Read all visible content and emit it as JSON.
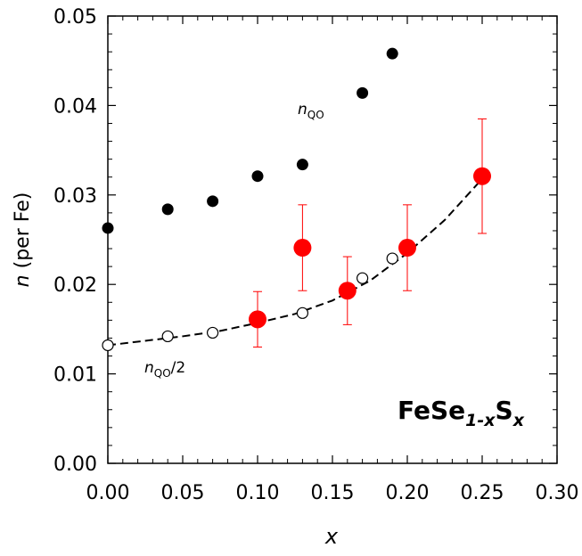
{
  "chart_data": {
    "type": "scatter",
    "x_label": "x",
    "y_label": [
      "n",
      "(per Fe)"
    ],
    "xlim": [
      0,
      0.3
    ],
    "ylim": [
      0,
      0.05
    ],
    "xticks": [
      {
        "value": 0,
        "label": "0.00"
      },
      0.05,
      {
        "value": 0.1,
        "label": "0.10"
      },
      0.15,
      {
        "value": 0.2,
        "label": "0.20"
      },
      0.25,
      {
        "value": 0.3,
        "label": "0.30"
      }
    ],
    "yticks": [
      {
        "value": 0,
        "label": "0.00"
      },
      0.01,
      0.02,
      0.03,
      0.04,
      0.05
    ],
    "series": [
      {
        "color": "#000000",
        "marker": "filled",
        "x": [
          0,
          0.04,
          0.07,
          0.1,
          0.13,
          0.17,
          0.19
        ],
        "values": [
          0.0263,
          0.0284,
          0.0293,
          0.0321,
          0.0334,
          0.0414,
          0.0458
        ]
      },
      {
        "color": "#000000",
        "marker": "open",
        "x": [
          0,
          0.04,
          0.07,
          0.13,
          0.17,
          0.19
        ],
        "values": [
          0.0132,
          0.0142,
          0.0146,
          0.0168,
          0.0207,
          0.0229
        ]
      },
      {
        "color": "#ff0000",
        "marker": "filled-large",
        "x": [
          0.1,
          0.13,
          0.16,
          0.2,
          0.25
        ],
        "values": [
          0.0161,
          0.0241,
          0.0193,
          0.0241,
          0.0321
        ],
        "errors": [
          0.0031,
          0.0048,
          0.0038,
          0.0048,
          0.0064
        ]
      }
    ],
    "fit": {
      "color": "#000000",
      "x": [
        0,
        0.025,
        0.05,
        0.075,
        0.1,
        0.125,
        0.15,
        0.175,
        0.2,
        0.225,
        0.25
      ],
      "values": [
        0.0132,
        0.0137,
        0.0142,
        0.0148,
        0.0157,
        0.0167,
        0.0182,
        0.0204,
        0.0235,
        0.0272,
        0.0318
      ]
    },
    "annotations": {
      "nqo": [
        "n",
        "QO"
      ],
      "nqo_half": [
        "n",
        "QO",
        "/2"
      ],
      "formula": [
        "FeSe",
        "1-x",
        "S",
        "x"
      ]
    }
  }
}
